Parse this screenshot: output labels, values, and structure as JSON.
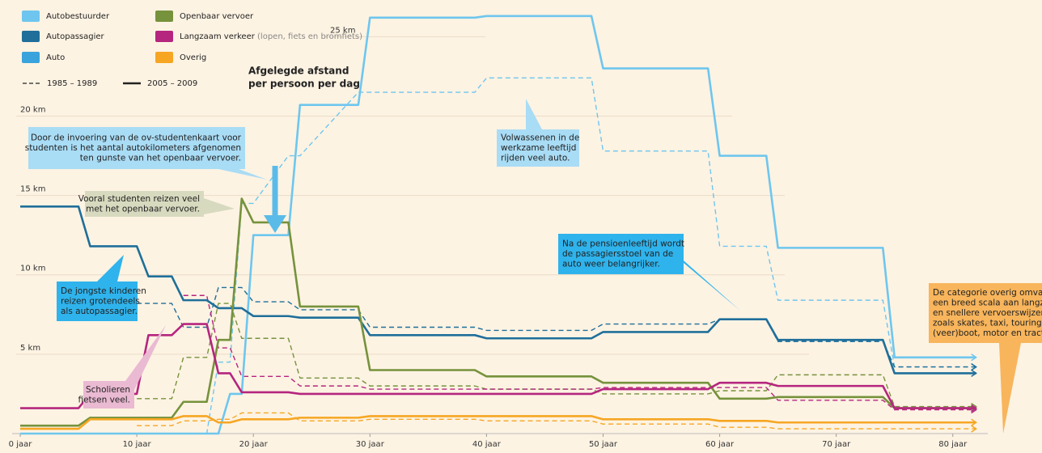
{
  "chart_data": {
    "type": "line",
    "title": [
      "Afgelegde afstand",
      "per persoon per dag"
    ],
    "legend": [
      {
        "name": "Autobestuurder",
        "color": "#6ec6ee"
      },
      {
        "name": "Autopassagier",
        "color": "#1f6f9a"
      },
      {
        "name": "Auto",
        "color": "#3aa3dc"
      },
      {
        "name": "Openbaar vervoer",
        "color": "#76923c"
      },
      {
        "name": "Langzaam verkeer",
        "note": "(lopen, fiets en bromfiets)",
        "color": "#b5267f"
      },
      {
        "name": "Overig",
        "color": "#f6a623"
      }
    ],
    "periods": [
      {
        "name": "1985 – 1989",
        "dashed": true
      },
      {
        "name": "2005 – 2009",
        "dashed": false
      }
    ],
    "x": [
      0,
      5,
      6,
      10,
      11,
      13,
      14,
      16,
      17,
      18,
      19,
      20,
      23,
      24,
      29,
      30,
      39,
      40,
      49,
      50,
      59,
      60,
      64,
      65,
      74,
      75,
      82
    ],
    "series": [
      {
        "color": "#6ec6ee",
        "dashed": true,
        "values": [
          0,
          0,
          0,
          0,
          0,
          0,
          0,
          0,
          4.5,
          4.5,
          14.5,
          14.5,
          17.5,
          17.5,
          21.5,
          21.5,
          21.5,
          22.4,
          22.4,
          17.8,
          17.8,
          11.8,
          11.8,
          8.4,
          8.4,
          4.2,
          4.2
        ]
      },
      {
        "color": "#1f6f9a",
        "dashed": true,
        "values": [
          null,
          null,
          null,
          8.2,
          8.2,
          8.2,
          6.7,
          6.7,
          9.2,
          9.2,
          9.2,
          8.3,
          8.3,
          7.8,
          7.8,
          6.7,
          6.7,
          6.5,
          6.5,
          6.9,
          6.9,
          7.2,
          7.2,
          5.8,
          5.8,
          4.2,
          4.2
        ]
      },
      {
        "color": "#76923c",
        "dashed": true,
        "values": [
          null,
          null,
          null,
          2.2,
          2.2,
          2.2,
          4.8,
          4.8,
          8.2,
          8.2,
          6.0,
          6.0,
          6.0,
          3.5,
          3.5,
          3.0,
          3.0,
          2.8,
          2.8,
          2.5,
          2.5,
          2.7,
          2.7,
          3.7,
          3.7,
          1.7,
          1.7
        ]
      },
      {
        "color": "#b5267f",
        "dashed": true,
        "values": [
          null,
          null,
          null,
          null,
          null,
          null,
          8.7,
          8.7,
          5.4,
          5.4,
          3.6,
          3.6,
          3.6,
          3.0,
          3.0,
          2.8,
          2.8,
          2.8,
          2.8,
          2.9,
          2.9,
          2.9,
          2.9,
          2.1,
          2.1,
          1.5,
          1.5
        ]
      },
      {
        "color": "#f6a623",
        "dashed": true,
        "values": [
          null,
          null,
          null,
          0.5,
          0.5,
          0.5,
          0.8,
          0.8,
          0.9,
          0.9,
          1.3,
          1.3,
          1.3,
          0.8,
          0.8,
          0.9,
          0.9,
          0.8,
          0.8,
          0.6,
          0.6,
          0.4,
          0.4,
          0.3,
          0.3,
          0.3,
          0.3
        ]
      },
      {
        "color": "#6ec6ee",
        "dashed": false,
        "values": [
          0,
          0,
          0,
          0,
          0,
          0,
          0,
          0,
          0,
          2.5,
          2.5,
          12.5,
          12.5,
          20.7,
          20.7,
          26.2,
          26.2,
          26.3,
          26.3,
          23,
          23,
          17.5,
          17.5,
          11.7,
          11.7,
          4.8,
          4.8
        ]
      },
      {
        "color": "#1f6f9a",
        "dashed": false,
        "values": [
          14.3,
          14.3,
          11.8,
          11.8,
          9.9,
          9.9,
          8.4,
          8.4,
          7.9,
          7.9,
          7.9,
          7.4,
          7.4,
          7.3,
          7.3,
          6.2,
          6.2,
          6.0,
          6.0,
          6.4,
          6.4,
          7.2,
          7.2,
          5.9,
          5.9,
          3.8,
          3.8
        ]
      },
      {
        "color": "#76923c",
        "dashed": false,
        "values": [
          0.5,
          0.5,
          1,
          1,
          1,
          1,
          2,
          2,
          5.9,
          5.9,
          14.8,
          13.3,
          13.3,
          8.0,
          8.0,
          4.0,
          4.0,
          3.6,
          3.6,
          3.2,
          3.2,
          2.2,
          2.2,
          2.3,
          2.3,
          1.6,
          1.6
        ]
      },
      {
        "color": "#b5267f",
        "dashed": false,
        "values": [
          1.6,
          1.6,
          2.5,
          2.5,
          6.2,
          6.2,
          6.9,
          6.9,
          3.8,
          3.8,
          2.6,
          2.6,
          2.6,
          2.5,
          2.5,
          2.5,
          2.5,
          2.5,
          2.5,
          2.8,
          2.8,
          3.2,
          3.2,
          3.0,
          3.0,
          1.6,
          1.6
        ]
      },
      {
        "color": "#f6a623",
        "dashed": false,
        "values": [
          0.3,
          0.3,
          0.9,
          0.9,
          0.9,
          0.9,
          1.1,
          1.1,
          0.7,
          0.7,
          0.9,
          0.9,
          0.9,
          1.0,
          1.0,
          1.1,
          1.1,
          1.1,
          1.1,
          0.9,
          0.9,
          0.8,
          0.8,
          0.7,
          0.7,
          0.7,
          0.7
        ]
      }
    ],
    "xlim": [
      0,
      83
    ],
    "ylim": [
      0,
      26.8
    ],
    "xticks": [
      {
        "value": 0,
        "label": "0 jaar"
      },
      {
        "value": 10,
        "label": "10 jaar"
      },
      {
        "value": 20,
        "label": "20 jaar"
      },
      {
        "value": 30,
        "label": "30 jaar"
      },
      {
        "value": 40,
        "label": "40 jaar"
      },
      {
        "value": 50,
        "label": "50 jaar"
      },
      {
        "value": 60,
        "label": "60 jaar"
      },
      {
        "value": 70,
        "label": "70 jaar"
      },
      {
        "value": 80,
        "label": "80 jaar"
      }
    ],
    "yticks": [
      {
        "value": 5,
        "label": "5 km"
      },
      {
        "value": 10,
        "label": "10 km"
      },
      {
        "value": 15,
        "label": "15 km"
      },
      {
        "value": 20,
        "label": "20 km"
      },
      {
        "value": 25,
        "label": "25 km"
      }
    ],
    "grid": true,
    "annotations": [
      {
        "text": [
          "Door de invoering van de ov-studentenkaart voor",
          "studenten is het aantal autokilometers afgenomen",
          "ten gunste van het openbaar vervoer."
        ]
      },
      {
        "text": [
          "Volwassenen in de",
          "werkzame leeftijd",
          "rijden veel auto."
        ]
      },
      {
        "text": [
          "Vooral studenten reizen veel",
          "met het openbaar vervoer."
        ]
      },
      {
        "text": [
          "Na de pensioenleeftijd wordt",
          "de passagiersstoel van de",
          "auto weer belangrijker."
        ]
      },
      {
        "text": [
          "De jongste kinderen",
          "reizen grotendeels",
          "als autopassagier."
        ]
      },
      {
        "text": [
          "Scholieren",
          "fietsen veel."
        ]
      },
      {
        "text": [
          "De categorie overig omvat",
          "een breed scala aan langzame",
          "en snellere vervoerswijzen",
          "zoals skates, taxi, touringcar,",
          "(veer)boot, motor en tractor."
        ]
      }
    ]
  }
}
